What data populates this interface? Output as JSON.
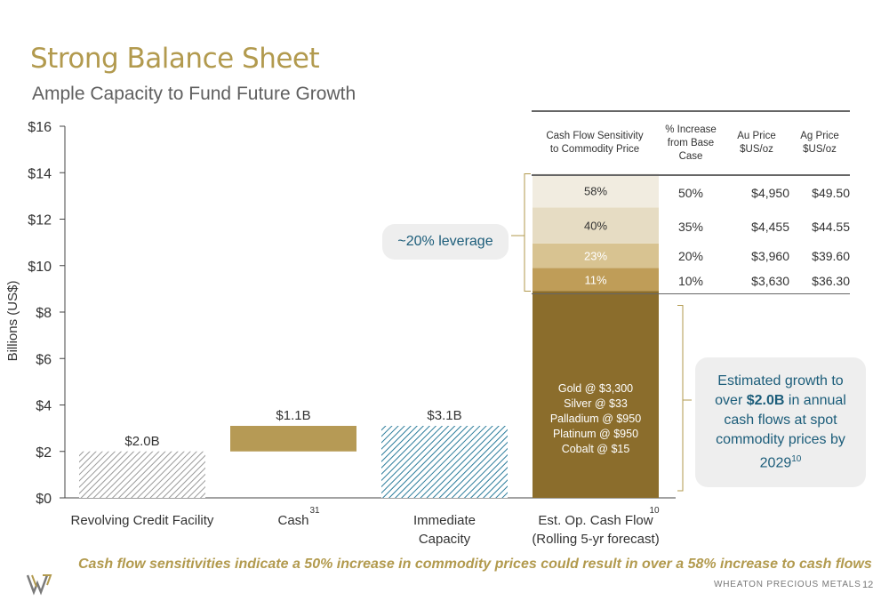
{
  "title": "Strong Balance Sheet",
  "subtitle": "Ample Capacity to Fund Future Growth",
  "chart_data": {
    "type": "bar",
    "ylabel": "Billions (US$)",
    "ylim": [
      0,
      16
    ],
    "y_ticks": [
      "$0",
      "$2",
      "$4",
      "$6",
      "$8",
      "$10",
      "$12",
      "$14",
      "$16"
    ],
    "grid": false,
    "categories": [
      "Revolving Credit Facility",
      "Cash",
      "Immediate Capacity",
      "Est. Op. Cash Flow (Rolling 5-yr forecast)"
    ],
    "bars": [
      {
        "category": "Revolving Credit Facility",
        "base": 0,
        "value": 2.0,
        "label": "$2.0B",
        "color": "#9a9a9a",
        "pattern": "hatch-gray"
      },
      {
        "category": "Cash",
        "base": 2.0,
        "value": 1.1,
        "label": "$1.1B",
        "color": "#b69a55",
        "pattern": "solid"
      },
      {
        "category": "Immediate Capacity",
        "base": 0,
        "value": 3.1,
        "label": "$3.1B",
        "color": "#2b7c9b",
        "pattern": "hatch-blue"
      },
      {
        "category": "Est. Op. Cash Flow (Rolling 5-yr forecast)",
        "base": 0,
        "value": 8.9,
        "label": "",
        "color": "#8b6d2c",
        "pattern": "solid"
      }
    ],
    "category_labels": [
      {
        "lines": [
          "Revolving Credit Facility"
        ],
        "sup": ""
      },
      {
        "lines": [
          "Cash"
        ],
        "sup": "31"
      },
      {
        "lines": [
          "Immediate",
          "Capacity"
        ],
        "sup": ""
      },
      {
        "lines": [
          "Est. Op. Cash Flow",
          "(Rolling 5-yr forecast)"
        ],
        "sup": "10"
      }
    ],
    "stack_segments": [
      {
        "label": "11%",
        "base": 8.9,
        "value": 1.0,
        "color": "#bf9d58",
        "text_color": "#ffffff"
      },
      {
        "label": "23%",
        "base": 9.9,
        "value": 1.05,
        "color": "#d8c391",
        "text_color": "#ffffff"
      },
      {
        "label": "40%",
        "base": 10.95,
        "value": 1.55,
        "color": "#e6dcc3",
        "text_color": "#333333"
      },
      {
        "label": "58%",
        "base": 12.5,
        "value": 1.45,
        "color": "#f1ece0",
        "text_color": "#333333"
      }
    ],
    "bar_inside_text": [
      "Gold @ $3,300",
      "Silver @ $33",
      "Palladium @ $950",
      "Platinum @ $950",
      "Cobalt @ $15"
    ]
  },
  "table": {
    "headers": [
      "Cash Flow Sensitivity\nto Commodity Price",
      "% Increase\nfrom Base\nCase",
      "Au Price\n$US/oz",
      "Ag Price\n$US/oz"
    ],
    "rows": [
      {
        "pct": "50%",
        "au": "$4,950",
        "ag": "$49.50"
      },
      {
        "pct": "35%",
        "au": "$4,455",
        "ag": "$44.55"
      },
      {
        "pct": "20%",
        "au": "$3,960",
        "ag": "$39.60"
      },
      {
        "pct": "10%",
        "au": "$3,630",
        "ag": "$36.30"
      }
    ]
  },
  "callouts": {
    "leverage": "~20% leverage",
    "growth_pre": "Estimated growth to over",
    "growth_bold": "$2.0B",
    "growth_post": "in annual cash flows at spot commodity prices by 2029",
    "growth_sup": "10"
  },
  "footnote": "Cash flow sensitivities indicate a 50% increase in commodity prices could result in over a 58% increase to cash flows",
  "footer": {
    "company": "WHEATON PRECIOUS METALS",
    "page": "12"
  },
  "colors": {
    "accent": "#b29a4e",
    "callout_text": "#1c5d7a",
    "callout_bg": "#eeeeee"
  }
}
